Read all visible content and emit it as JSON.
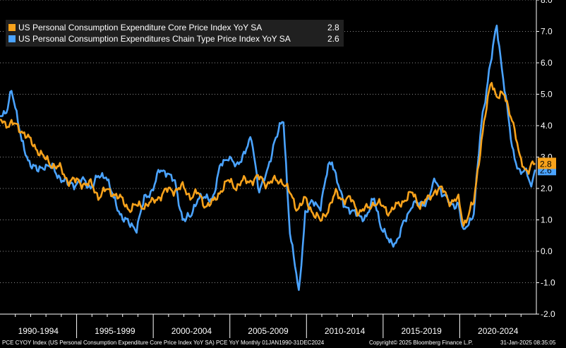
{
  "legend": [
    {
      "name": "US Personal Consumption Expenditure Core Price Index YoY SA",
      "value": "2.8",
      "color": "#f7a21b"
    },
    {
      "name": "US Personal Consumption Expenditures Chain Type Price Index YoY SA",
      "value": "2.6",
      "color": "#4aa3ff"
    }
  ],
  "footer": {
    "left": "PCE CYOY Index (US Personal Consumption Expenditure Core Price Index YoY SA) PCE YoY  Monthly 01JAN1990-31DEC2024",
    "middle": "Copyright© 2025 Bloomberg Finance L.P.",
    "right": "31-Jan-2025 08:35:05"
  },
  "chart_data": {
    "type": "line",
    "x_start": "1990-01",
    "x_end": "2024-12",
    "frequency": "monthly",
    "x_tick_labels": [
      "1990-1994",
      "1995-1999",
      "2000-2004",
      "2005-2009",
      "2010-2014",
      "2015-2019",
      "2020-2024"
    ],
    "y_ticks": [
      "-2.0",
      "-1.0",
      "0.0",
      "1.0",
      "2.0",
      "3.0",
      "4.0",
      "5.0",
      "6.0",
      "7.0",
      "8.0"
    ],
    "ylim": [
      -2.0,
      8.0
    ],
    "grid": true,
    "legend_position": "top-left",
    "series": [
      {
        "name": "US Personal Consumption Expenditure Core Price Index YoY SA",
        "color": "#f7a21b",
        "last_value": "2.8",
        "keypoints": [
          [
            "1990-01",
            4.2
          ],
          [
            "1990-06",
            4.1
          ],
          [
            "1990-12",
            4.0
          ],
          [
            "1991-06",
            3.9
          ],
          [
            "1991-12",
            3.5
          ],
          [
            "1992-06",
            3.3
          ],
          [
            "1992-12",
            2.9
          ],
          [
            "1993-06",
            2.8
          ],
          [
            "1993-12",
            2.6
          ],
          [
            "1994-06",
            2.3
          ],
          [
            "1994-12",
            2.2
          ],
          [
            "1995-06",
            2.2
          ],
          [
            "1995-12",
            2.1
          ],
          [
            "1996-06",
            1.8
          ],
          [
            "1996-12",
            1.9
          ],
          [
            "1997-06",
            1.9
          ],
          [
            "1997-12",
            1.6
          ],
          [
            "1998-06",
            1.4
          ],
          [
            "1998-12",
            1.4
          ],
          [
            "1999-06",
            1.5
          ],
          [
            "1999-12",
            1.5
          ],
          [
            "2000-06",
            1.8
          ],
          [
            "2000-12",
            1.9
          ],
          [
            "2001-06",
            2.0
          ],
          [
            "2001-12",
            2.0
          ],
          [
            "2002-06",
            1.8
          ],
          [
            "2002-12",
            1.8
          ],
          [
            "2003-06",
            1.5
          ],
          [
            "2003-12",
            1.5
          ],
          [
            "2004-06",
            2.0
          ],
          [
            "2004-12",
            2.2
          ],
          [
            "2005-06",
            2.1
          ],
          [
            "2005-12",
            2.2
          ],
          [
            "2006-06",
            2.3
          ],
          [
            "2006-12",
            2.3
          ],
          [
            "2007-06",
            2.2
          ],
          [
            "2007-12",
            2.2
          ],
          [
            "2008-06",
            2.3
          ],
          [
            "2008-12",
            1.8
          ],
          [
            "2009-06",
            1.4
          ],
          [
            "2009-12",
            1.6
          ],
          [
            "2010-06",
            1.3
          ],
          [
            "2010-12",
            0.9
          ],
          [
            "2011-06",
            1.4
          ],
          [
            "2011-12",
            1.8
          ],
          [
            "2012-06",
            1.7
          ],
          [
            "2012-12",
            1.6
          ],
          [
            "2013-06",
            1.3
          ],
          [
            "2013-12",
            1.3
          ],
          [
            "2014-06",
            1.6
          ],
          [
            "2014-12",
            1.4
          ],
          [
            "2015-06",
            1.3
          ],
          [
            "2015-12",
            1.4
          ],
          [
            "2016-06",
            1.7
          ],
          [
            "2016-12",
            1.8
          ],
          [
            "2017-06",
            1.5
          ],
          [
            "2017-12",
            1.6
          ],
          [
            "2018-06",
            2.0
          ],
          [
            "2018-12",
            1.9
          ],
          [
            "2019-06",
            1.6
          ],
          [
            "2019-12",
            1.6
          ],
          [
            "2020-04",
            0.9
          ],
          [
            "2020-12",
            1.5
          ],
          [
            "2021-06",
            3.6
          ],
          [
            "2021-12",
            5.0
          ],
          [
            "2022-02",
            5.4
          ],
          [
            "2022-06",
            5.0
          ],
          [
            "2022-12",
            4.9
          ],
          [
            "2023-06",
            4.3
          ],
          [
            "2023-12",
            2.9
          ],
          [
            "2024-06",
            2.6
          ],
          [
            "2024-12",
            2.8
          ]
        ]
      },
      {
        "name": "US Personal Consumption Expenditures Chain Type Price Index YoY SA",
        "color": "#4aa3ff",
        "last_value": "2.6",
        "keypoints": [
          [
            "1990-01",
            4.3
          ],
          [
            "1990-06",
            4.3
          ],
          [
            "1990-10",
            5.2
          ],
          [
            "1990-12",
            4.9
          ],
          [
            "1991-06",
            3.4
          ],
          [
            "1991-12",
            2.9
          ],
          [
            "1992-06",
            2.5
          ],
          [
            "1992-12",
            2.8
          ],
          [
            "1993-06",
            2.6
          ],
          [
            "1993-12",
            2.4
          ],
          [
            "1994-06",
            2.1
          ],
          [
            "1994-12",
            2.2
          ],
          [
            "1995-06",
            2.2
          ],
          [
            "1995-12",
            2.1
          ],
          [
            "1996-06",
            2.3
          ],
          [
            "1996-12",
            2.5
          ],
          [
            "1997-06",
            1.6
          ],
          [
            "1997-12",
            1.2
          ],
          [
            "1998-06",
            0.8
          ],
          [
            "1998-12",
            0.8
          ],
          [
            "1999-06",
            1.6
          ],
          [
            "1999-12",
            2.0
          ],
          [
            "2000-06",
            2.5
          ],
          [
            "2000-12",
            2.6
          ],
          [
            "2001-06",
            2.1
          ],
          [
            "2001-12",
            1.1
          ],
          [
            "2002-06",
            1.0
          ],
          [
            "2002-12",
            1.8
          ],
          [
            "2003-06",
            1.6
          ],
          [
            "2003-12",
            1.8
          ],
          [
            "2004-06",
            2.7
          ],
          [
            "2004-12",
            3.1
          ],
          [
            "2005-06",
            2.6
          ],
          [
            "2005-12",
            3.2
          ],
          [
            "2006-06",
            3.5
          ],
          [
            "2006-12",
            2.0
          ],
          [
            "2007-06",
            2.4
          ],
          [
            "2007-12",
            3.6
          ],
          [
            "2008-07",
            4.1
          ],
          [
            "2008-12",
            0.7
          ],
          [
            "2009-07",
            -1.4
          ],
          [
            "2009-12",
            1.3
          ],
          [
            "2010-06",
            1.5
          ],
          [
            "2010-12",
            1.5
          ],
          [
            "2011-06",
            2.6
          ],
          [
            "2011-09",
            2.9
          ],
          [
            "2011-12",
            2.5
          ],
          [
            "2012-06",
            1.4
          ],
          [
            "2012-12",
            1.4
          ],
          [
            "2013-06",
            1.0
          ],
          [
            "2013-12",
            1.2
          ],
          [
            "2014-06",
            1.6
          ],
          [
            "2014-12",
            0.8
          ],
          [
            "2015-06",
            0.2
          ],
          [
            "2015-12",
            0.4
          ],
          [
            "2016-06",
            0.9
          ],
          [
            "2016-12",
            1.6
          ],
          [
            "2017-06",
            1.4
          ],
          [
            "2017-12",
            1.7
          ],
          [
            "2018-06",
            2.2
          ],
          [
            "2018-12",
            1.9
          ],
          [
            "2019-06",
            1.4
          ],
          [
            "2019-12",
            1.6
          ],
          [
            "2020-04",
            0.5
          ],
          [
            "2020-12",
            1.3
          ],
          [
            "2021-06",
            4.0
          ],
          [
            "2021-12",
            5.8
          ],
          [
            "2022-06",
            7.1
          ],
          [
            "2022-12",
            5.3
          ],
          [
            "2023-06",
            3.2
          ],
          [
            "2023-12",
            2.6
          ],
          [
            "2024-06",
            2.4
          ],
          [
            "2024-09",
            2.1
          ],
          [
            "2024-12",
            2.6
          ]
        ]
      }
    ]
  }
}
